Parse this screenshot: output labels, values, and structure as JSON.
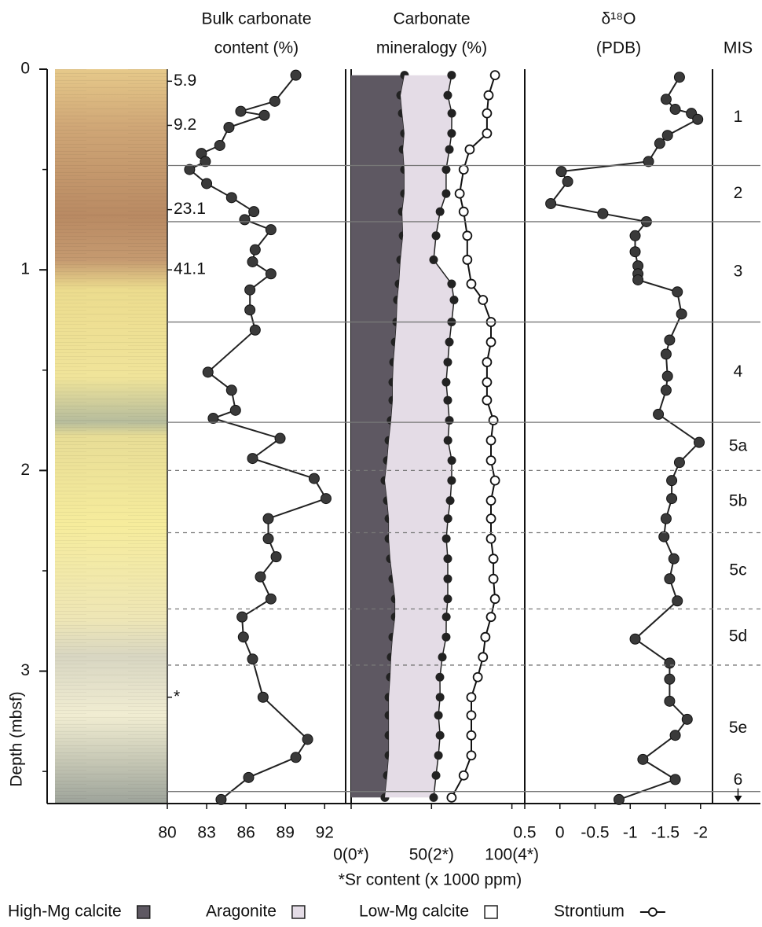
{
  "chart_data": [
    {
      "type": "core",
      "ylabel": "Depth (mbsf)",
      "ylim": [
        0,
        3.66
      ],
      "yticks": [
        0,
        1,
        2,
        3
      ],
      "yminorticks": [
        0.5,
        1.5,
        2.5,
        3.5
      ],
      "annotations": [
        {
          "text": "5.9",
          "depth": 0.06
        },
        {
          "text": "9.2",
          "depth": 0.28
        },
        {
          "text": "23.1",
          "depth": 0.7
        },
        {
          "text": "41.1",
          "depth": 1.0
        },
        {
          "text": "*",
          "depth": 3.13
        }
      ]
    },
    {
      "type": "line",
      "title": [
        "Bulk carbonate",
        "content (%)"
      ],
      "color": "#222222",
      "xlim": [
        80,
        93.6
      ],
      "xticks": [
        80,
        83,
        86,
        89,
        92
      ],
      "y": [
        0.03,
        0.16,
        0.21,
        0.23,
        0.29,
        0.38,
        0.42,
        0.46,
        0.5,
        0.57,
        0.64,
        0.71,
        0.75,
        0.8,
        0.9,
        0.96,
        1.02,
        1.1,
        1.2,
        1.3,
        1.51,
        1.6,
        1.7,
        1.74,
        1.84,
        1.94,
        2.04,
        2.14,
        2.24,
        2.34,
        2.43,
        2.53,
        2.64,
        2.73,
        2.83,
        2.94,
        3.13,
        3.34,
        3.43,
        3.53,
        3.64
      ],
      "values": [
        89.8,
        88.2,
        85.6,
        87.4,
        84.7,
        84.0,
        82.6,
        82.9,
        81.7,
        83.0,
        84.9,
        86.6,
        85.9,
        87.9,
        86.7,
        86.5,
        87.9,
        86.3,
        86.3,
        86.7,
        83.1,
        84.9,
        85.2,
        83.5,
        88.6,
        86.5,
        91.2,
        92.1,
        87.7,
        87.7,
        88.3,
        87.1,
        87.9,
        85.7,
        85.8,
        86.5,
        87.3,
        90.7,
        89.8,
        86.2,
        84.1
      ]
    },
    {
      "type": "stacked-area",
      "title": [
        "Carbonate",
        "mineralogy (%)"
      ],
      "xlabel": "*Sr content (x 1000 ppm)",
      "xlim": [
        0,
        108
      ],
      "x2lim": [
        0,
        4.32
      ],
      "xticks": [
        {
          "value": 0,
          "label": "0(0*)"
        },
        {
          "value": 50,
          "label": "50(2*)"
        },
        {
          "value": 100,
          "label": "100(4*)"
        }
      ],
      "y": [
        0.03,
        0.13,
        0.22,
        0.32,
        0.4,
        0.5,
        0.62,
        0.71,
        0.83,
        0.95,
        1.07,
        1.15,
        1.26,
        1.36,
        1.46,
        1.56,
        1.65,
        1.75,
        1.85,
        1.95,
        2.05,
        2.15,
        2.24,
        2.34,
        2.44,
        2.54,
        2.64,
        2.73,
        2.83,
        2.93,
        3.03,
        3.13,
        3.22,
        3.32,
        3.42,
        3.52,
        3.63
      ],
      "series": [
        {
          "name": "High-Mg calcite",
          "color": "#5e5862",
          "values": [
            33.2,
            30.8,
            31.8,
            33.2,
            32.3,
            33.2,
            33.2,
            31.8,
            32.3,
            30.8,
            29.8,
            28.8,
            28.3,
            27.4,
            26.4,
            25.9,
            25.9,
            24.9,
            23.5,
            22.5,
            21.0,
            22.5,
            23.5,
            23.5,
            24.4,
            25.9,
            27.4,
            27.4,
            25.9,
            24.9,
            24.4,
            23.5,
            23.5,
            23.5,
            23.5,
            22.5,
            21.0
          ]
        },
        {
          "name": "Aragonite",
          "color": "#e4dce6",
          "values": [
            29.3,
            29.3,
            30.8,
            29.3,
            28.8,
            25.9,
            25.9,
            23.5,
            20.5,
            20.5,
            32.7,
            35.2,
            34.2,
            33.7,
            33.7,
            33.2,
            34.2,
            36.2,
            36.7,
            40.1,
            41.5,
            39.1,
            36.7,
            35.7,
            35.7,
            34.2,
            32.7,
            31.8,
            33.2,
            31.8,
            30.8,
            31.8,
            30.8,
            31.8,
            30.8,
            30.3,
            30.3
          ]
        },
        {
          "name": "Low-Mg calcite",
          "color": "#ffffff"
        },
        {
          "name": "Strontium",
          "color": "#111111",
          "axis": "x2",
          "values": [
            3.58,
            3.42,
            3.38,
            3.38,
            2.95,
            2.8,
            2.7,
            2.8,
            2.89,
            2.89,
            2.99,
            3.28,
            3.48,
            3.48,
            3.38,
            3.38,
            3.38,
            3.54,
            3.48,
            3.48,
            3.58,
            3.48,
            3.48,
            3.48,
            3.54,
            3.54,
            3.58,
            3.48,
            3.34,
            3.28,
            3.15,
            2.99,
            2.99,
            2.99,
            2.99,
            2.8,
            2.5
          ]
        }
      ],
      "legend": "bottom"
    },
    {
      "type": "line",
      "title": [
        "δ¹⁸O",
        "(PDB)"
      ],
      "color": "#222222",
      "xlim": [
        0.5,
        -2.17
      ],
      "xticks": [
        0.5,
        0,
        -0.5,
        -1,
        -1.5,
        -2
      ],
      "y": [
        0.04,
        0.15,
        0.2,
        0.22,
        0.25,
        0.33,
        0.37,
        0.46,
        0.51,
        0.56,
        0.67,
        0.72,
        0.76,
        0.83,
        0.91,
        0.98,
        1.02,
        1.05,
        1.11,
        1.22,
        1.35,
        1.42,
        1.53,
        1.6,
        1.72,
        1.86,
        1.96,
        2.05,
        2.14,
        2.24,
        2.33,
        2.44,
        2.54,
        2.65,
        2.84,
        2.96,
        3.04,
        3.15,
        3.24,
        3.32,
        3.44,
        3.54,
        3.64
      ],
      "values": [
        -1.7,
        -1.51,
        -1.64,
        -1.87,
        -1.96,
        -1.53,
        -1.42,
        -1.26,
        -0.02,
        -0.11,
        0.13,
        -0.61,
        -1.23,
        -1.07,
        -1.07,
        -1.11,
        -1.11,
        -1.11,
        -1.67,
        -1.73,
        -1.56,
        -1.51,
        -1.53,
        -1.51,
        -1.4,
        -1.98,
        -1.7,
        -1.59,
        -1.59,
        -1.51,
        -1.48,
        -1.62,
        -1.56,
        -1.67,
        -1.07,
        -1.56,
        -1.56,
        -1.56,
        -1.81,
        -1.64,
        -1.18,
        -1.64,
        -0.84
      ]
    },
    {
      "type": "stages",
      "title": "MIS",
      "boundaries": [
        {
          "depth": 0.48,
          "style": "solid"
        },
        {
          "depth": 0.76,
          "style": "solid"
        },
        {
          "depth": 1.26,
          "style": "solid"
        },
        {
          "depth": 1.76,
          "style": "solid"
        },
        {
          "depth": 2.0,
          "style": "dashed"
        },
        {
          "depth": 2.31,
          "style": "dashed"
        },
        {
          "depth": 2.69,
          "style": "dashed"
        },
        {
          "depth": 2.97,
          "style": "dashed"
        },
        {
          "depth": 3.6,
          "style": "solid"
        }
      ],
      "stages": [
        "1",
        "2",
        "3",
        "4",
        "5a",
        "5b",
        "5c",
        "5d",
        "5e",
        "6"
      ]
    }
  ]
}
